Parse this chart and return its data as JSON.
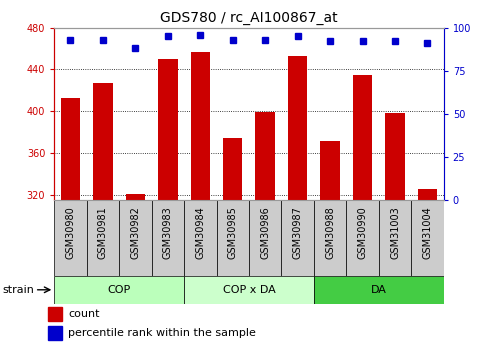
{
  "title": "GDS780 / rc_AI100867_at",
  "samples": [
    "GSM30980",
    "GSM30981",
    "GSM30982",
    "GSM30983",
    "GSM30984",
    "GSM30985",
    "GSM30986",
    "GSM30987",
    "GSM30988",
    "GSM30990",
    "GSM31003",
    "GSM31004"
  ],
  "bar_values": [
    413,
    427,
    321,
    450,
    457,
    374,
    399,
    453,
    372,
    435,
    398,
    326
  ],
  "percentile_values": [
    93,
    93,
    88,
    95,
    96,
    93,
    93,
    95,
    92,
    92,
    92,
    91
  ],
  "ylim_left": [
    315,
    480
  ],
  "ylim_right": [
    0,
    100
  ],
  "yticks_left": [
    320,
    360,
    400,
    440,
    480
  ],
  "yticks_right": [
    0,
    25,
    50,
    75,
    100
  ],
  "bar_color": "#cc0000",
  "dot_color": "#0000cc",
  "groups": [
    {
      "label": "COP",
      "start": 0,
      "end": 3,
      "color": "#bbffbb"
    },
    {
      "label": "COP x DA",
      "start": 4,
      "end": 7,
      "color": "#ccffcc"
    },
    {
      "label": "DA",
      "start": 8,
      "end": 11,
      "color": "#44cc44"
    }
  ],
  "legend_count_color": "#cc0000",
  "legend_pct_color": "#0000cc",
  "strain_label": "strain",
  "ylabel_left_color": "#cc0000",
  "ylabel_right_color": "#0000cc",
  "background_color": "#ffffff",
  "plot_bg_color": "#ffffff",
  "tick_box_color": "#cccccc",
  "border_color": "#999999",
  "grid_color": "#000000",
  "title_fontsize": 10,
  "tick_fontsize": 7,
  "label_fontsize": 8
}
